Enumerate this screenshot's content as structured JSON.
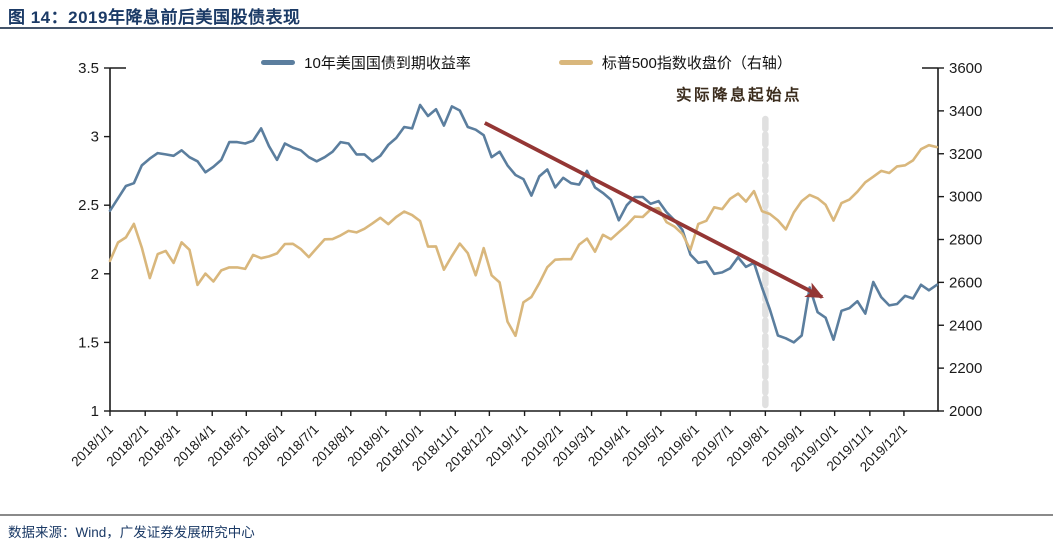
{
  "header": {
    "figure_label": "图 14：2019年降息前后美国股债表现"
  },
  "footer": {
    "source": "数据来源：Wind，广发证券发展研究中心"
  },
  "legend": [
    {
      "label": "10年美国国债到期收益率",
      "color": "#5b7e9e"
    },
    {
      "label": "标普500指数收盘价（右轴）",
      "color": "#d9b77c"
    }
  ],
  "chart_data": {
    "type": "line",
    "x_unit": "weekly points starting 2018/1/1, step 7 days",
    "x_step_days": 7,
    "x_tick_labels": [
      "2018/1/1",
      "2018/2/1",
      "2018/3/1",
      "2018/4/1",
      "2018/5/1",
      "2018/6/1",
      "2018/7/1",
      "2018/8/1",
      "2018/9/1",
      "2018/10/1",
      "2018/11/1",
      "2018/12/1",
      "2019/1/1",
      "2019/2/1",
      "2019/3/1",
      "2019/4/1",
      "2019/5/1",
      "2019/6/1",
      "2019/7/1",
      "2019/8/1",
      "2019/9/1",
      "2019/10/1",
      "2019/11/1",
      "2019/12/1"
    ],
    "x_tick_days": [
      0,
      31,
      59,
      90,
      120,
      151,
      181,
      212,
      243,
      273,
      304,
      334,
      365,
      396,
      424,
      455,
      485,
      516,
      546,
      577,
      608,
      638,
      669,
      699
    ],
    "left_axis": {
      "min": 1,
      "max": 3.5,
      "tick_labels": [
        "3.5",
        "3",
        "2.5",
        "2",
        "1.5",
        "1"
      ],
      "tick_values": [
        3.5,
        3,
        2.5,
        2,
        1.5,
        1
      ]
    },
    "right_axis": {
      "min": 2000,
      "max": 3600,
      "tick_labels": [
        "3600",
        "3400",
        "3200",
        "3000",
        "2800",
        "2600",
        "2400",
        "2200",
        "2000"
      ],
      "tick_values": [
        3600,
        3400,
        3200,
        3000,
        2800,
        2600,
        2400,
        2200,
        2000
      ]
    },
    "grid": "off",
    "legend_position": "top-center",
    "series": [
      {
        "name": "10年美国国债到期收益率",
        "axis": "left",
        "color": "#5b7e9e",
        "values": [
          2.46,
          2.55,
          2.64,
          2.66,
          2.79,
          2.84,
          2.88,
          2.87,
          2.86,
          2.9,
          2.85,
          2.82,
          2.74,
          2.78,
          2.83,
          2.96,
          2.96,
          2.95,
          2.97,
          3.06,
          2.93,
          2.83,
          2.95,
          2.92,
          2.9,
          2.85,
          2.82,
          2.85,
          2.89,
          2.96,
          2.95,
          2.87,
          2.87,
          2.82,
          2.86,
          2.94,
          2.99,
          3.07,
          3.06,
          3.23,
          3.15,
          3.2,
          3.08,
          3.22,
          3.19,
          3.07,
          3.05,
          3.01,
          2.85,
          2.89,
          2.79,
          2.72,
          2.69,
          2.57,
          2.71,
          2.76,
          2.63,
          2.7,
          2.66,
          2.65,
          2.75,
          2.63,
          2.59,
          2.54,
          2.39,
          2.5,
          2.56,
          2.56,
          2.51,
          2.53,
          2.45,
          2.39,
          2.32,
          2.14,
          2.08,
          2.09,
          2.0,
          2.01,
          2.04,
          2.12,
          2.05,
          2.08,
          1.9,
          1.74,
          1.55,
          1.53,
          1.5,
          1.55,
          1.9,
          1.72,
          1.68,
          1.52,
          1.73,
          1.75,
          1.8,
          1.71,
          1.94,
          1.83,
          1.77,
          1.78,
          1.84,
          1.82,
          1.92,
          1.88,
          1.92
        ]
      },
      {
        "name": "标普500指数收盘价（右轴）",
        "axis": "right",
        "color": "#d9b77c",
        "values": [
          2700,
          2786,
          2810,
          2873,
          2762,
          2620,
          2732,
          2747,
          2691,
          2787,
          2752,
          2588,
          2641,
          2604,
          2656,
          2670,
          2670,
          2663,
          2728,
          2713,
          2721,
          2735,
          2779,
          2780,
          2755,
          2718,
          2760,
          2801,
          2802,
          2819,
          2840,
          2833,
          2850,
          2875,
          2901,
          2872,
          2905,
          2930,
          2914,
          2886,
          2767,
          2768,
          2659,
          2723,
          2781,
          2736,
          2633,
          2760,
          2633,
          2600,
          2417,
          2351,
          2507,
          2532,
          2596,
          2671,
          2706,
          2708,
          2708,
          2776,
          2804,
          2743,
          2822,
          2801,
          2834,
          2867,
          2907,
          2905,
          2940,
          2946,
          2881,
          2860,
          2826,
          2752,
          2873,
          2887,
          2950,
          2942,
          2990,
          3014,
          2977,
          3026,
          2932,
          2919,
          2889,
          2847,
          2926,
          2979,
          3008,
          2992,
          2962,
          2888,
          2970,
          2986,
          3023,
          3067,
          3093,
          3120,
          3110,
          3141,
          3146,
          3169,
          3221,
          3240,
          3231
        ]
      }
    ],
    "annotations": {
      "vline": {
        "day": 577,
        "color": "#e0e0e0"
      },
      "vline_label": "实际降息起始点",
      "arrow": {
        "from_day": 330,
        "from_value": 3.1,
        "to_day": 627,
        "to_value": 1.83,
        "color": "#943634"
      }
    }
  }
}
